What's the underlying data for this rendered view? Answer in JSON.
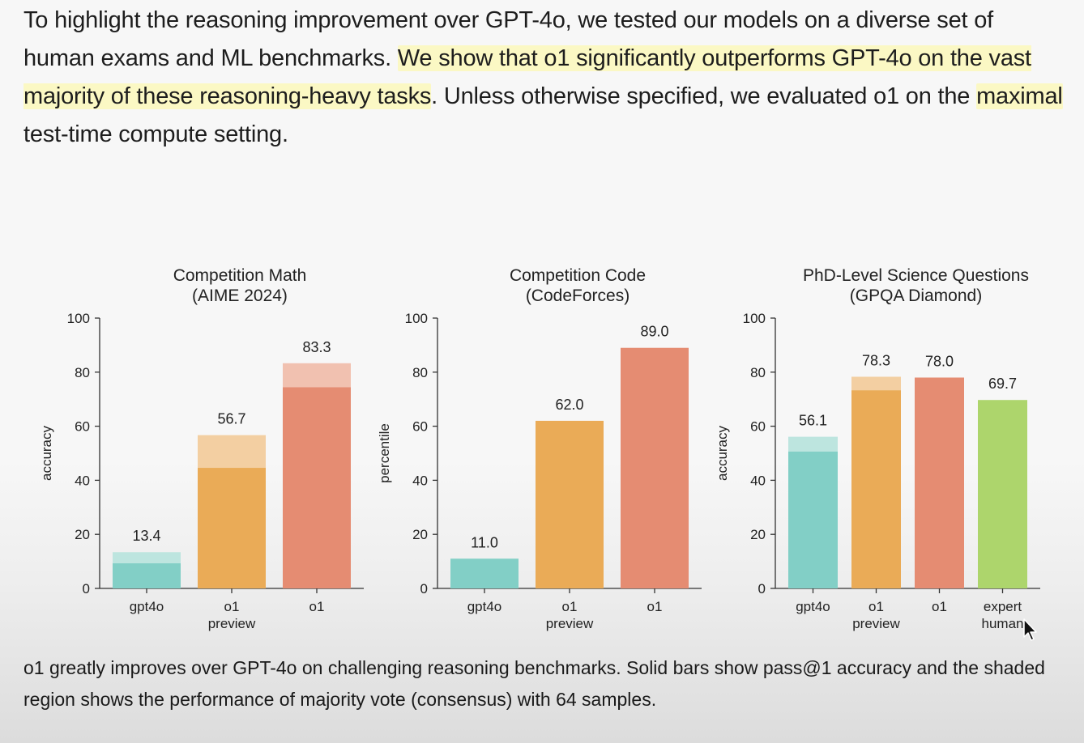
{
  "intro": {
    "parts": [
      {
        "text": "To highlight the reasoning improvement over GPT-4o, we tested our models on a diverse set of human exams and ML benchmarks. ",
        "highlight": false
      },
      {
        "text": "We show that o1 significantly outperforms GPT-4o on the vast majority of these reasoning-heavy tasks",
        "highlight": true
      },
      {
        "text": ". Unless otherwise specified, we evaluated o1 on the ",
        "highlight": false
      },
      {
        "text": "maximal",
        "highlight": true
      },
      {
        "text": " test-time compute setting.",
        "highlight": false
      }
    ]
  },
  "caption": "o1 greatly improves over GPT-4o on challenging reasoning benchmarks. Solid bars show pass@1 accuracy and the shaded region shows the performance of majority vote (consensus) with 64 samples.",
  "colors": {
    "gpt4o": "#82cfc6",
    "gpt4o_shade": "#bde5df",
    "o1_preview": "#eaab57",
    "o1_preview_shade": "#f3cfa2",
    "o1": "#e58c72",
    "o1_shade": "#f1c1b0",
    "expert": "#add56c",
    "axis": "#333333"
  },
  "chart_data": [
    {
      "type": "bar",
      "title": [
        "Competition Math",
        "(AIME 2024)"
      ],
      "ylabel": "accuracy",
      "ylim": [
        0,
        100
      ],
      "yticks": [
        0,
        20,
        40,
        60,
        80,
        100
      ],
      "bars": [
        {
          "label": [
            "gpt4o"
          ],
          "solid": 9.3,
          "consensus": 13.4,
          "value_label": "13.4",
          "color": "gpt4o"
        },
        {
          "label": [
            "o1",
            "preview"
          ],
          "solid": 44.6,
          "consensus": 56.7,
          "value_label": "56.7",
          "color": "o1_preview"
        },
        {
          "label": [
            "o1"
          ],
          "solid": 74.4,
          "consensus": 83.3,
          "value_label": "83.3",
          "color": "o1"
        }
      ]
    },
    {
      "type": "bar",
      "title": [
        "Competition Code",
        "(CodeForces)"
      ],
      "ylabel": "percentile",
      "ylim": [
        0,
        100
      ],
      "yticks": [
        0,
        20,
        40,
        60,
        80,
        100
      ],
      "bars": [
        {
          "label": [
            "gpt4o"
          ],
          "solid": 11.0,
          "consensus": null,
          "value_label": "11.0",
          "color": "gpt4o"
        },
        {
          "label": [
            "o1",
            "preview"
          ],
          "solid": 62.0,
          "consensus": null,
          "value_label": "62.0",
          "color": "o1_preview"
        },
        {
          "label": [
            "o1"
          ],
          "solid": 89.0,
          "consensus": null,
          "value_label": "89.0",
          "color": "o1"
        }
      ]
    },
    {
      "type": "bar",
      "title": [
        "PhD-Level Science Questions",
        "(GPQA Diamond)"
      ],
      "ylabel": "accuracy",
      "ylim": [
        0,
        100
      ],
      "yticks": [
        0,
        20,
        40,
        60,
        80,
        100
      ],
      "bars": [
        {
          "label": [
            "gpt4o"
          ],
          "solid": 50.6,
          "consensus": 56.1,
          "value_label": "56.1",
          "color": "gpt4o"
        },
        {
          "label": [
            "o1",
            "preview"
          ],
          "solid": 73.3,
          "consensus": 78.3,
          "value_label": "78.3",
          "color": "o1_preview"
        },
        {
          "label": [
            "o1"
          ],
          "solid": 78.0,
          "consensus": null,
          "value_label": "78.0",
          "color": "o1"
        },
        {
          "label": [
            "expert",
            "human"
          ],
          "solid": 69.7,
          "consensus": null,
          "value_label": "69.7",
          "color": "expert"
        }
      ]
    }
  ]
}
